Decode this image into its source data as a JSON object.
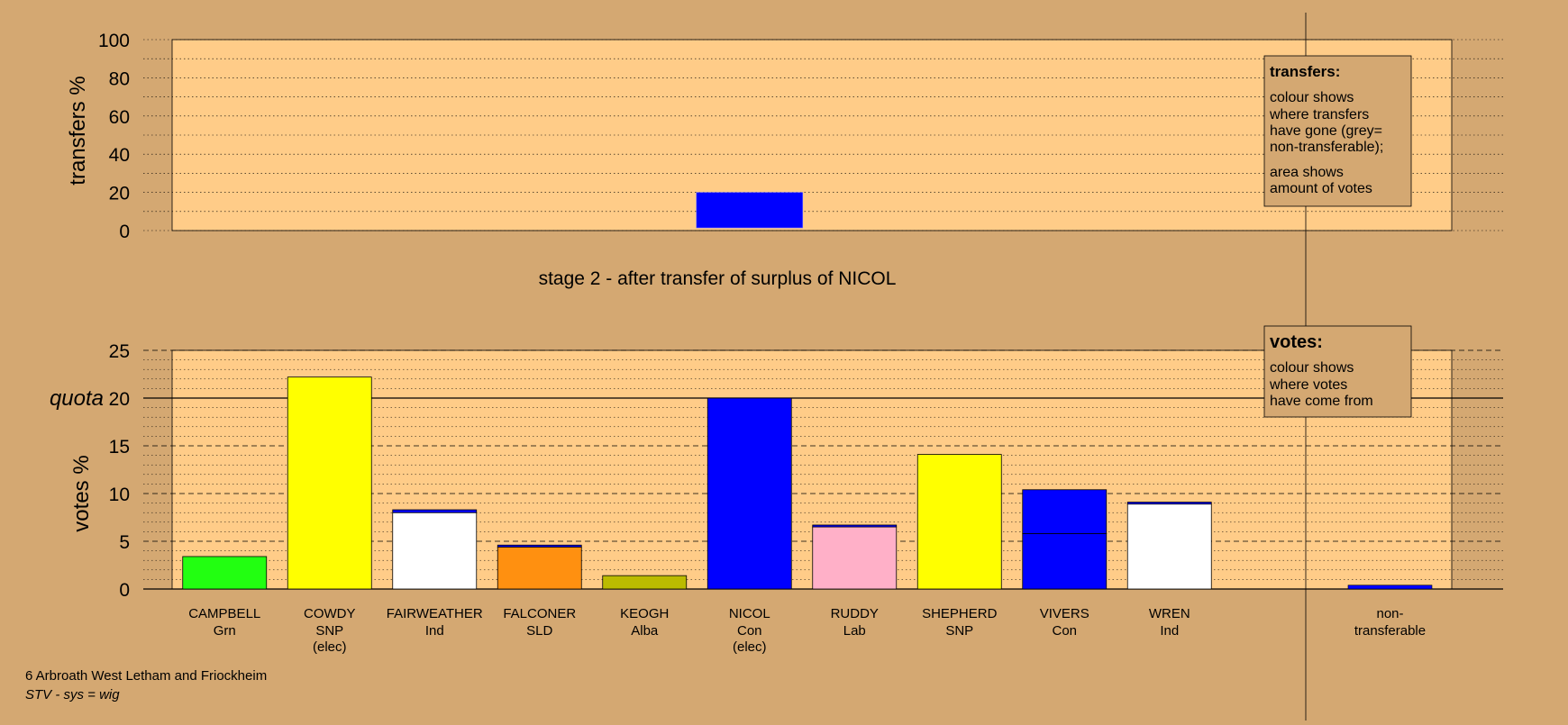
{
  "transfers_panel": {
    "ylabel": "transfers %",
    "yticks": [
      0,
      20,
      40,
      60,
      80,
      100
    ],
    "legend": {
      "title": "transfers:",
      "line1": "colour shows",
      "line2": "where transfers",
      "line3": "have gone (grey=",
      "line4": "non-transferable);",
      "line5": "area shows",
      "line6": "amount of votes"
    }
  },
  "stage_title": "stage 2 - after transfer of surplus of NICOL",
  "votes_panel": {
    "ylabel": "votes %",
    "quota_label": "quota",
    "yticks": [
      0,
      5,
      10,
      15,
      20,
      25
    ],
    "legend": {
      "title": "votes:",
      "line1": "colour shows",
      "line2": "where votes",
      "line3": "have come from"
    }
  },
  "footer": {
    "ward": "6 Arbroath West Letham and Friockheim",
    "system": "STV - sys = wig"
  },
  "colors": {
    "background": "#d4a872",
    "plot_area": "#ffcc88",
    "con": "#0000ff",
    "snp": "#ffff00",
    "grn": "#22ff11",
    "sld": "#ff9010",
    "alba": "#bbbb00",
    "lab": "#ffb0c8",
    "ind": "#ffffff"
  },
  "chart_data": [
    {
      "type": "bar",
      "title": "",
      "ylabel": "transfers %",
      "ylim": [
        0,
        100
      ],
      "bars": [
        {
          "candidate": "NICOL",
          "transfer_pct": 20,
          "color": "#0000ff"
        }
      ],
      "grid": true
    },
    {
      "type": "bar",
      "title": "stage 2 - after transfer of surplus of NICOL",
      "ylabel": "votes %",
      "ylim": [
        0,
        25
      ],
      "quota": 20,
      "grid": true,
      "candidates": [
        {
          "name": "CAMPBELL",
          "party": "Grn",
          "note": "",
          "value": 3.4,
          "segments": [
            {
              "value": 3.4,
              "color": "#22ff11"
            }
          ]
        },
        {
          "name": "COWDY",
          "party": "SNP",
          "note": "(elec)",
          "value": 22.2,
          "segments": [
            {
              "value": 22.2,
              "color": "#ffff00"
            }
          ]
        },
        {
          "name": "FAIRWEATHER",
          "party": "Ind",
          "note": "",
          "value": 8.3,
          "segments": [
            {
              "value": 8.0,
              "color": "#ffffff"
            },
            {
              "value": 0.3,
              "color": "#0000ff"
            }
          ]
        },
        {
          "name": "FALCONER",
          "party": "SLD",
          "note": "",
          "value": 4.6,
          "segments": [
            {
              "value": 4.4,
              "color": "#ff9010"
            },
            {
              "value": 0.2,
              "color": "#0000ff"
            }
          ]
        },
        {
          "name": "KEOGH",
          "party": "Alba",
          "note": "",
          "value": 1.4,
          "segments": [
            {
              "value": 1.4,
              "color": "#bbbb00"
            }
          ]
        },
        {
          "name": "NICOL",
          "party": "Con",
          "note": "(elec)",
          "value": 20.0,
          "segments": [
            {
              "value": 20.0,
              "color": "#0000ff"
            }
          ]
        },
        {
          "name": "RUDDY",
          "party": "Lab",
          "note": "",
          "value": 6.7,
          "segments": [
            {
              "value": 6.5,
              "color": "#ffb0c8"
            },
            {
              "value": 0.2,
              "color": "#0000ff"
            }
          ]
        },
        {
          "name": "SHEPHERD",
          "party": "SNP",
          "note": "",
          "value": 14.1,
          "segments": [
            {
              "value": 14.1,
              "color": "#ffff00"
            }
          ]
        },
        {
          "name": "VIVERS",
          "party": "Con",
          "note": "",
          "value": 10.4,
          "segments": [
            {
              "value": 5.8,
              "color": "#0000ff"
            },
            {
              "value": 4.6,
              "color": "#0000ff"
            }
          ]
        },
        {
          "name": "WREN",
          "party": "Ind",
          "note": "",
          "value": 9.1,
          "segments": [
            {
              "value": 8.9,
              "color": "#ffffff"
            },
            {
              "value": 0.2,
              "color": "#0000ff"
            }
          ]
        }
      ],
      "non_transferable": {
        "name": "non-",
        "name2": "transferable",
        "value": 0.4,
        "color": "#0000ff"
      }
    }
  ]
}
